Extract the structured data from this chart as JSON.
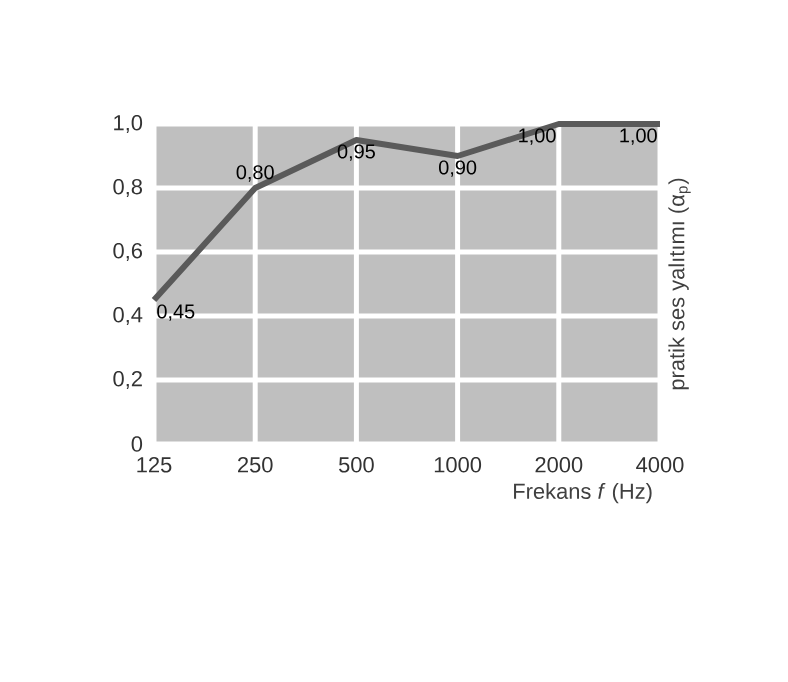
{
  "chart_data": {
    "type": "line",
    "xlabel": "Frekans *f* (Hz)",
    "ylabel": "pratik ses yalıtımı (α$_{p}$)",
    "categories": [
      "125",
      "250",
      "500",
      "1000",
      "2000",
      "4000"
    ],
    "values": [
      0.45,
      0.8,
      0.95,
      0.9,
      1.0,
      1.0
    ],
    "value_labels": [
      "0,45",
      "0,80",
      "0,95",
      "0,90",
      "1,00",
      "1,00"
    ],
    "color": "#5a5a5a",
    "ylim": [
      0,
      1
    ],
    "yticks": [
      0,
      {
        "value": 0.2,
        "label": "0,2"
      },
      {
        "value": 0.4,
        "label": "0,4"
      },
      {
        "value": 0.6,
        "label": "0,6"
      },
      {
        "value": 0.8,
        "label": "0,8"
      },
      {
        "value": 1,
        "label": "1,0"
      }
    ],
    "grid": true,
    "marker": "none",
    "line_style": "solid"
  }
}
